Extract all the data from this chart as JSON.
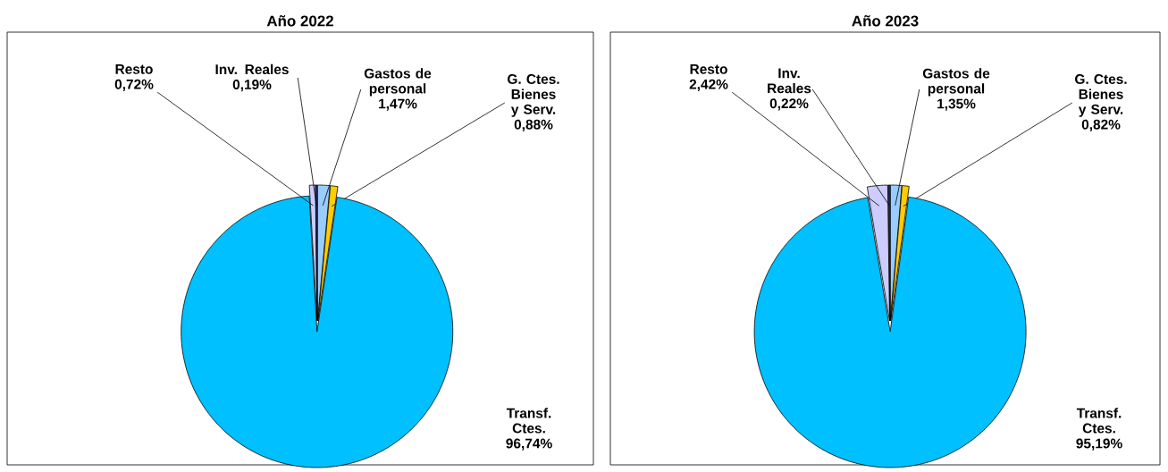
{
  "chart_data": [
    {
      "type": "pie",
      "title": "Año 2022",
      "categories": [
        "Gastos de personal",
        "G. Ctes. Bienes y Serv.",
        "Transf. Ctes.",
        "Resto",
        "Inv. Reales"
      ],
      "values": [
        1.47,
        0.88,
        96.74,
        0.72,
        0.19
      ],
      "colors": [
        "#99ccff",
        "#ffcc00",
        "#00c0ff",
        "#ccccff",
        "#333399"
      ],
      "value_labels": [
        "1,47%",
        "0,88%",
        "96,74%",
        "0,72%",
        "0,19%"
      ]
    },
    {
      "type": "pie",
      "title": "Año 2023",
      "categories": [
        "Gastos de personal",
        "G. Ctes. Bienes y Serv.",
        "Transf. Ctes.",
        "Resto",
        "Inv. Reales"
      ],
      "values": [
        1.35,
        0.82,
        95.19,
        2.42,
        0.22
      ],
      "colors": [
        "#99ccff",
        "#ffcc00",
        "#00c0ff",
        "#ccccff",
        "#333399"
      ],
      "value_labels": [
        "1,35%",
        "0,82%",
        "95,19%",
        "2,42%",
        "0,22%"
      ]
    }
  ]
}
